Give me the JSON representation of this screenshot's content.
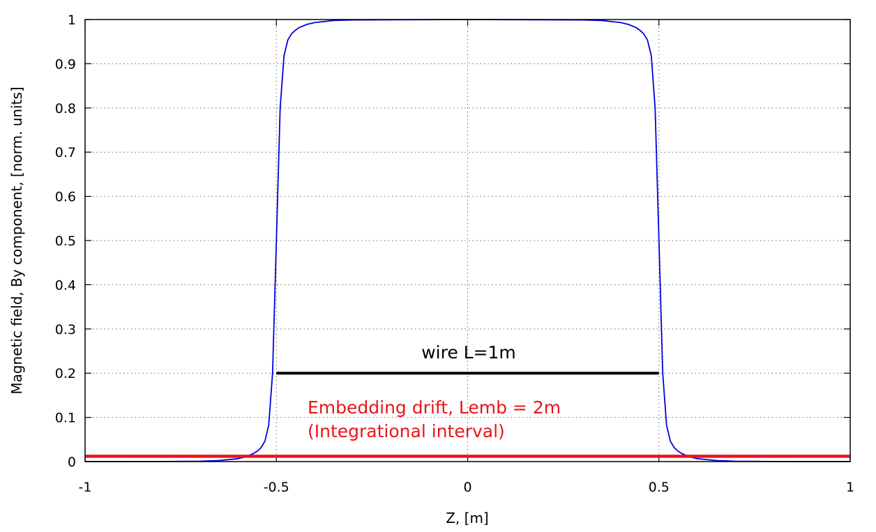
{
  "chart_data": {
    "type": "line",
    "xlabel": "Z, [m]",
    "ylabel": "Magnetic field, By component, [norm. units]",
    "xlim": [
      -1,
      1
    ],
    "ylim": [
      0,
      1
    ],
    "xticks": [
      -1,
      -0.5,
      0,
      0.5,
      1
    ],
    "xtick_labels": [
      "-1",
      "-0.5",
      "0",
      "0.5",
      "1"
    ],
    "yticks": [
      0,
      0.1,
      0.2,
      0.3,
      0.4,
      0.5,
      0.6,
      0.7,
      0.8,
      0.9,
      1
    ],
    "ytick_labels": [
      "0",
      "0.1",
      "0.2",
      "0.3",
      "0.4",
      "0.5",
      "0.6",
      "0.7",
      "0.8",
      "0.9",
      "1"
    ],
    "grid": true,
    "grid_style": "dotted",
    "series": [
      {
        "color": "#0000dd",
        "x": [
          -1,
          -0.9,
          -0.8,
          -0.7,
          -0.65,
          -0.6,
          -0.58,
          -0.56,
          -0.55,
          -0.54,
          -0.53,
          -0.52,
          -0.51,
          -0.5,
          -0.49,
          -0.48,
          -0.47,
          -0.46,
          -0.45,
          -0.44,
          -0.42,
          -0.4,
          -0.35,
          -0.3,
          0,
          0.3,
          0.35,
          0.4,
          0.42,
          0.44,
          0.45,
          0.46,
          0.47,
          0.48,
          0.49,
          0.5,
          0.51,
          0.52,
          0.53,
          0.54,
          0.55,
          0.56,
          0.58,
          0.6,
          0.65,
          0.7,
          0.8,
          0.9,
          1
        ],
        "y": [
          0,
          0,
          0.0001,
          0.0008,
          0.0023,
          0.0067,
          0.0108,
          0.0181,
          0.0235,
          0.0315,
          0.0461,
          0.0823,
          0.2,
          0.5,
          0.8,
          0.918,
          0.954,
          0.968,
          0.976,
          0.982,
          0.989,
          0.993,
          0.998,
          0.999,
          1,
          0.999,
          0.998,
          0.993,
          0.989,
          0.982,
          0.976,
          0.968,
          0.954,
          0.918,
          0.8,
          0.5,
          0.2,
          0.0823,
          0.0461,
          0.0315,
          0.0235,
          0.0181,
          0.0108,
          0.0067,
          0.0023,
          0.0008,
          0.0001,
          0,
          0
        ]
      }
    ],
    "wire": {
      "x": [
        -0.5,
        0.5
      ],
      "y": 0.2,
      "color": "#000000",
      "label": "wire L=1m"
    },
    "drift": {
      "x": [
        -1,
        1
      ],
      "y": 0.012,
      "color": "#e8141b",
      "label_line1": "Embedding drift, Lemb = 2m",
      "label_line2": "(Integrational interval)"
    }
  }
}
